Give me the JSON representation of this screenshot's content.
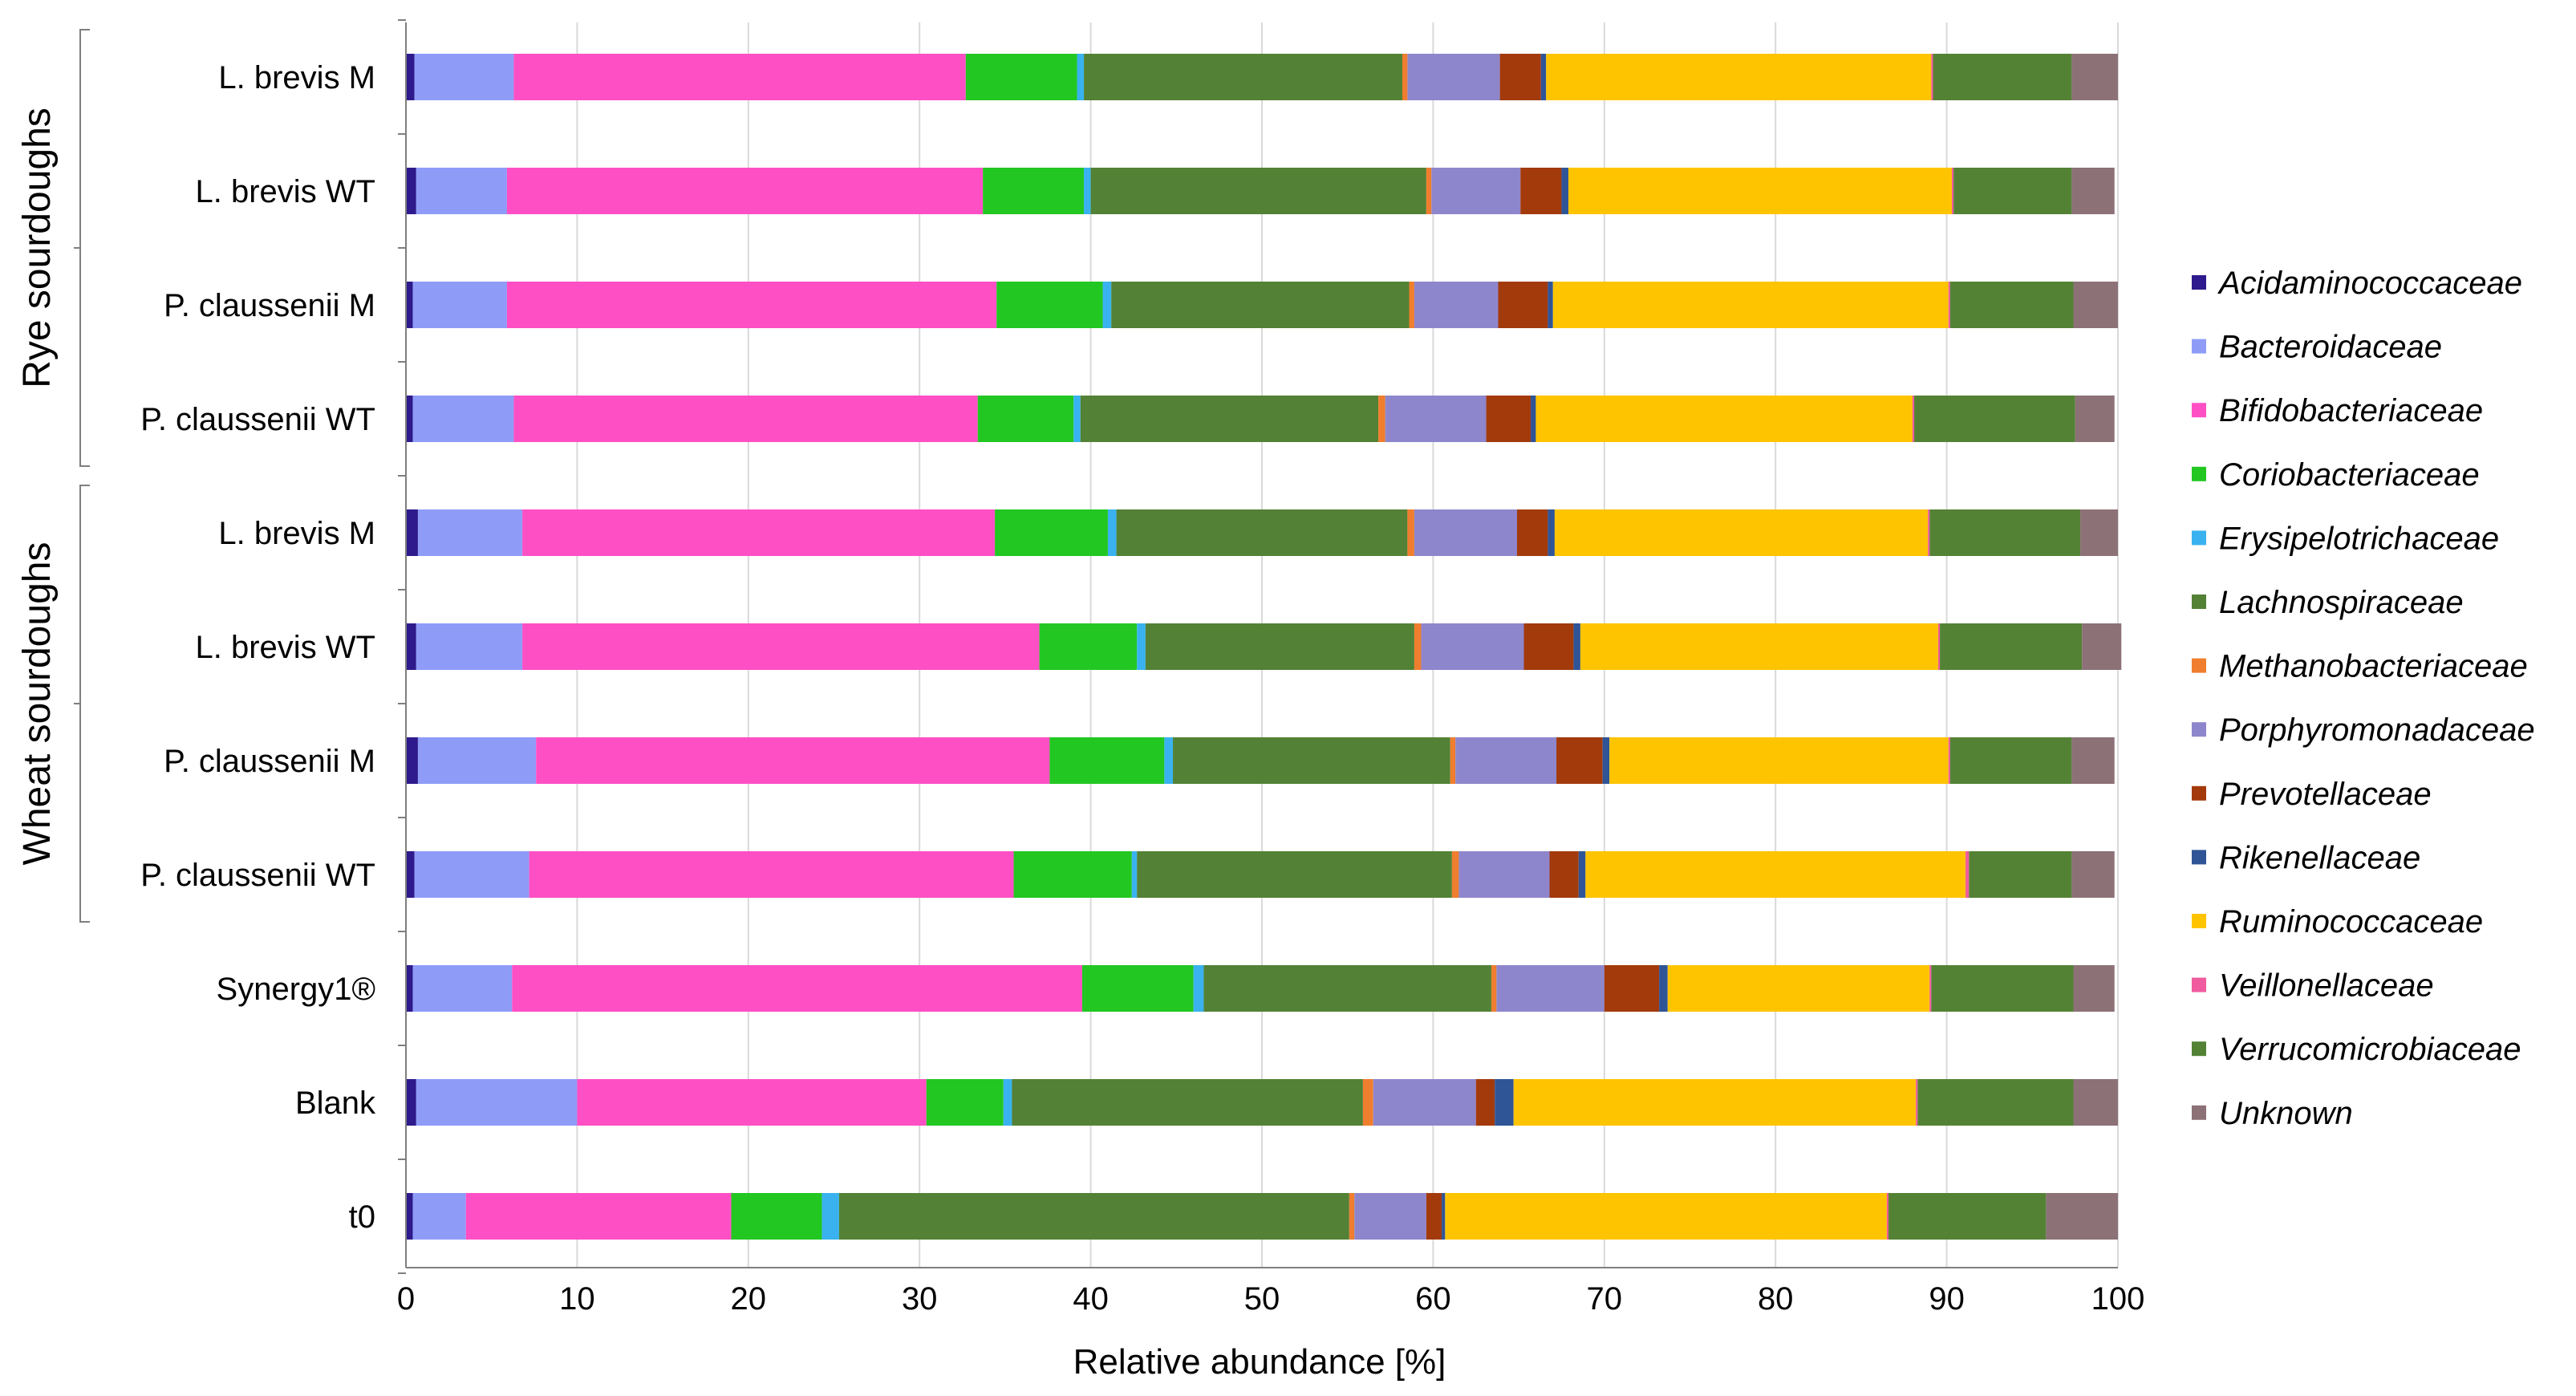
{
  "chart_data": {
    "type": "bar",
    "orientation": "horizontal",
    "stacked": true,
    "xlabel": "Relative abundance [%]",
    "ylabel": "",
    "xlim": [
      0,
      100
    ],
    "x_ticks": [
      0,
      10,
      20,
      30,
      40,
      50,
      60,
      70,
      80,
      90,
      100
    ],
    "grid": "vertical",
    "legend_position": "right",
    "categories": [
      "L. brevis M",
      "L. brevis WT",
      "P. claussenii M",
      "P. claussenii WT",
      "L. brevis M",
      "L. brevis WT",
      "P. claussenii M",
      "P. claussenii WT",
      "Synergy1®",
      "Blank",
      "t0"
    ],
    "groups": [
      {
        "label": "Rye sourdoughs",
        "start": 0,
        "end": 3
      },
      {
        "label": "Wheat sourdoughs",
        "start": 4,
        "end": 7
      }
    ],
    "series": [
      {
        "name": "Acidaminococcaceae",
        "color": "#2e1a8c",
        "values": [
          0.5,
          0.6,
          0.4,
          0.4,
          0.7,
          0.6,
          0.7,
          0.5,
          0.4,
          0.6,
          0.4
        ]
      },
      {
        "name": "Bacteroidaceae",
        "color": "#8e9cf8",
        "values": [
          5.8,
          5.3,
          5.5,
          5.9,
          6.1,
          6.2,
          6.9,
          6.7,
          5.8,
          9.4,
          3.1
        ]
      },
      {
        "name": "Bifidobacteriaceae",
        "color": "#ff4fc4",
        "values": [
          26.4,
          27.8,
          28.6,
          27.1,
          27.6,
          30.2,
          30.0,
          28.3,
          33.3,
          20.4,
          15.5
        ]
      },
      {
        "name": "Coriobacteriaceae",
        "color": "#22c722",
        "values": [
          6.5,
          5.9,
          6.2,
          5.6,
          6.6,
          5.7,
          6.7,
          6.9,
          6.5,
          4.5,
          5.3
        ]
      },
      {
        "name": "Erysipelotrichaceae",
        "color": "#39b2ef",
        "values": [
          0.4,
          0.4,
          0.5,
          0.4,
          0.5,
          0.5,
          0.5,
          0.3,
          0.6,
          0.5,
          1.0
        ]
      },
      {
        "name": "Lachnospiraceae",
        "color": "#538135",
        "values": [
          18.6,
          19.6,
          17.4,
          17.4,
          17.0,
          15.7,
          16.2,
          18.4,
          16.8,
          20.5,
          29.8
        ]
      },
      {
        "name": "Methanobacteriaceae",
        "color": "#ef7e2e",
        "values": [
          0.3,
          0.3,
          0.3,
          0.4,
          0.4,
          0.4,
          0.3,
          0.4,
          0.3,
          0.6,
          0.3
        ]
      },
      {
        "name": "Porphyromonadaceae",
        "color": "#8e86cc",
        "values": [
          5.4,
          5.2,
          4.9,
          5.9,
          6.0,
          6.0,
          5.9,
          5.3,
          6.3,
          6.0,
          4.2
        ]
      },
      {
        "name": "Prevotellaceae",
        "color": "#a33a0c",
        "values": [
          2.4,
          2.4,
          2.9,
          2.6,
          1.8,
          2.9,
          2.7,
          1.7,
          3.2,
          1.1,
          0.9
        ]
      },
      {
        "name": "Rikenellaceae",
        "color": "#2f5597",
        "values": [
          0.3,
          0.4,
          0.3,
          0.3,
          0.4,
          0.4,
          0.4,
          0.4,
          0.5,
          1.1,
          0.2
        ]
      },
      {
        "name": "Ruminococcaceae",
        "color": "#ffc400",
        "values": [
          22.5,
          22.4,
          23.1,
          22.0,
          21.8,
          20.9,
          19.8,
          22.2,
          15.3,
          23.5,
          25.8
        ]
      },
      {
        "name": "Veillonellaceae",
        "color": "#f05a9e",
        "values": [
          0.1,
          0.1,
          0.1,
          0.1,
          0.1,
          0.1,
          0.1,
          0.2,
          0.1,
          0.1,
          0.1
        ]
      },
      {
        "name": "Verrucomicrobiaceae",
        "color": "#548235",
        "values": [
          8.1,
          6.9,
          7.2,
          9.4,
          8.8,
          8.3,
          7.1,
          6.0,
          8.3,
          9.1,
          9.2
        ]
      },
      {
        "name": "Unknown",
        "color": "#8c7177",
        "values": [
          2.7,
          2.5,
          2.6,
          2.3,
          2.2,
          2.3,
          2.5,
          2.5,
          2.4,
          2.6,
          4.2
        ]
      }
    ]
  }
}
